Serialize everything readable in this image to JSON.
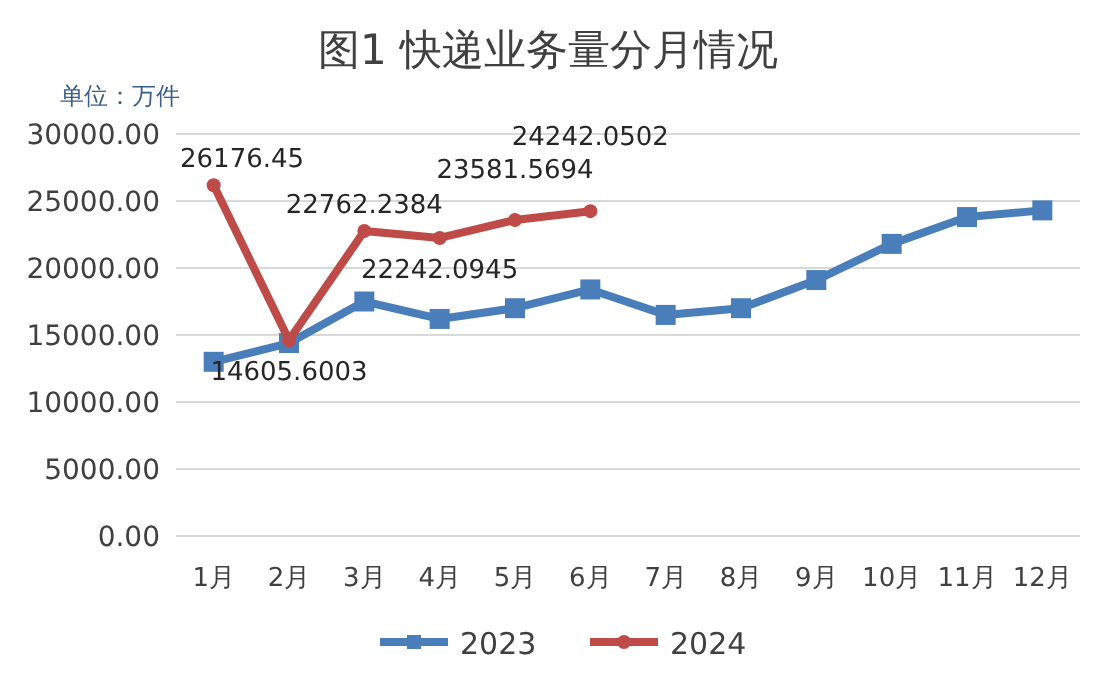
{
  "chart_data": {
    "type": "line",
    "title": "图1  快递业务量分月情况",
    "annotations": [
      "单位：万件"
    ],
    "categories": [
      "1月",
      "2月",
      "3月",
      "4月",
      "5月",
      "6月",
      "7月",
      "8月",
      "9月",
      "10月",
      "11月",
      "12月"
    ],
    "series": [
      {
        "name": "2023",
        "color": "#4a7ebb",
        "marker": "square",
        "values": [
          13000,
          14400,
          17500,
          16200,
          17000,
          18400,
          16500,
          17000,
          19100,
          21800,
          23800,
          24300
        ]
      },
      {
        "name": "2024",
        "color": "#be4b48",
        "marker": "circle",
        "values": [
          26176.45,
          14605.6003,
          22762.2384,
          22242.0945,
          23581.5694,
          24242.0502,
          null,
          null,
          null,
          null,
          null,
          null
        ],
        "value_labels": [
          "26176.45",
          "14605.6003",
          "22762.2384",
          "22242.0945",
          "23581.5694",
          "24242.0502",
          null,
          null,
          null,
          null,
          null,
          null
        ]
      }
    ],
    "ylim": [
      0,
      30000
    ],
    "yticks": [
      {
        "value": 0,
        "label": "0.00"
      },
      {
        "value": 5000,
        "label": "5000.00"
      },
      {
        "value": 10000,
        "label": "10000.00"
      },
      {
        "value": 15000,
        "label": "15000.00"
      },
      {
        "value": 20000,
        "label": "20000.00"
      },
      {
        "value": 25000,
        "label": "25000.00"
      },
      {
        "value": 30000,
        "label": "30000.00"
      }
    ],
    "grid": "y",
    "legend": "bottom",
    "line_style": "solid"
  }
}
